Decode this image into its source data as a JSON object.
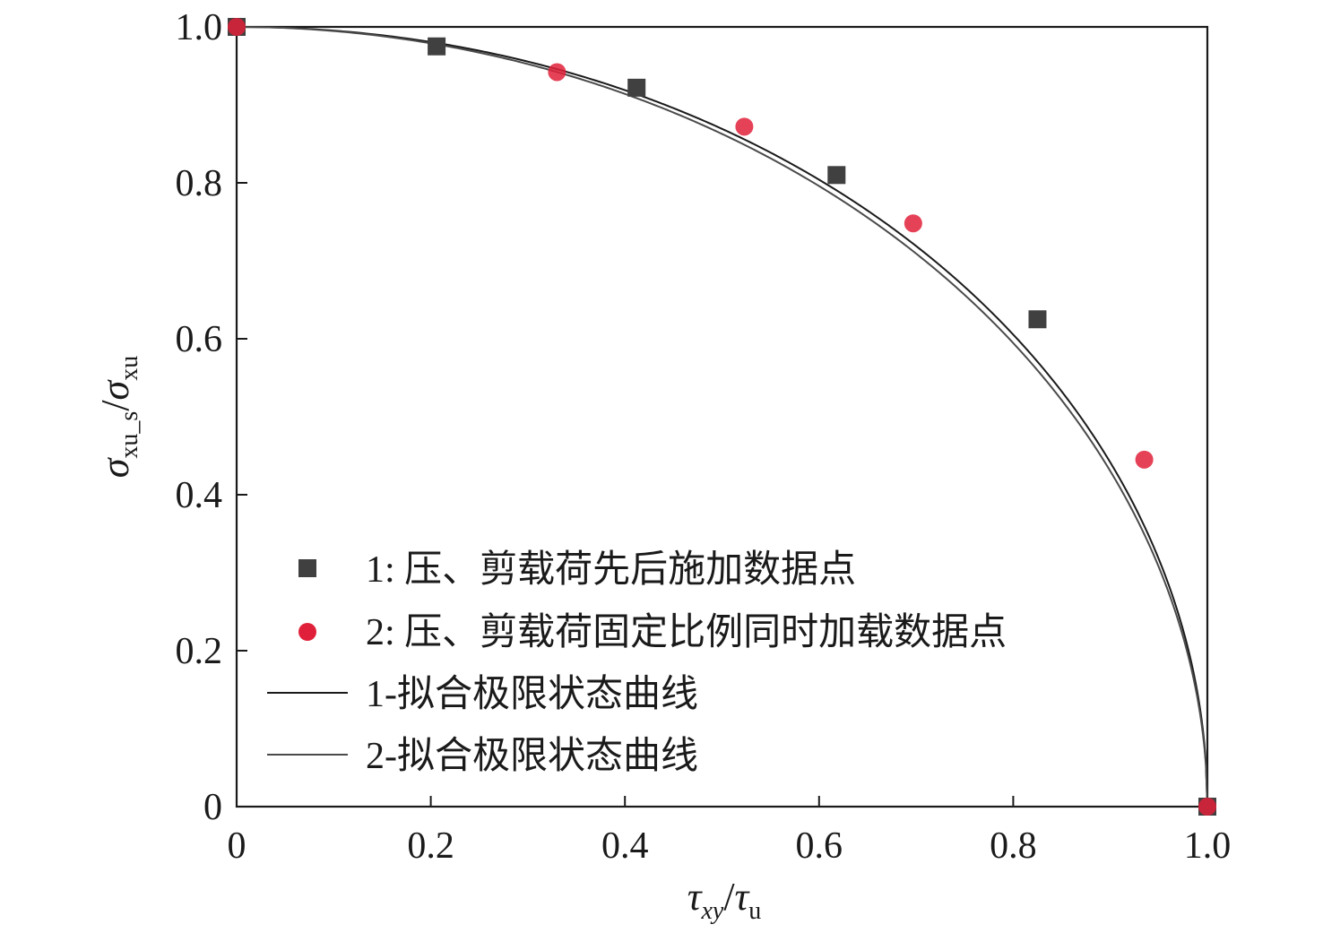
{
  "chart_data": {
    "type": "scatter",
    "xlabel": {
      "base1": "τ",
      "sub1": "xy",
      "slash": "/",
      "base2": "τ",
      "sub2": "u"
    },
    "ylabel": {
      "base1": "σ",
      "sub1": "xu_s",
      "slash": "/",
      "base2": "σ",
      "sub2": "xu"
    },
    "xlim": [
      0,
      1.0
    ],
    "ylim": [
      0,
      1.0
    ],
    "xticks": [
      0,
      0.2,
      0.4,
      0.6,
      0.8,
      1.0
    ],
    "xtick_labels": [
      "0",
      "0.2",
      "0.4",
      "0.6",
      "0.8",
      "1.0"
    ],
    "yticks": [
      0,
      0.2,
      0.4,
      0.6,
      0.8,
      1.0
    ],
    "ytick_labels": [
      "0",
      "0.2",
      "0.4",
      "0.6",
      "0.8",
      "1.0"
    ],
    "grid": false,
    "legend_position": "lower-left",
    "series": [
      {
        "name": "1: 压、剪载荷先后施加数据点",
        "marker": "square",
        "color": "#404040",
        "x": [
          0,
          0.206,
          0.412,
          0.618,
          0.825,
          1.0
        ],
        "y": [
          1.0,
          0.975,
          0.922,
          0.81,
          0.625,
          0.0
        ]
      },
      {
        "name": "2: 压、剪载荷固定比例同时加载数据点",
        "marker": "circle",
        "color": "#e0203a",
        "x": [
          0,
          0.33,
          0.523,
          0.697,
          0.935,
          1.0
        ],
        "y": [
          1.0,
          0.942,
          0.872,
          0.748,
          0.445,
          0.0
        ]
      },
      {
        "name": "1-拟合极限状态曲线",
        "marker": "line",
        "color": "#1a1a1a",
        "exponent": 2.02
      },
      {
        "name": "2-拟合极限状态曲线",
        "marker": "line",
        "color": "#4a4a4a",
        "exponent": 1.98
      }
    ]
  }
}
